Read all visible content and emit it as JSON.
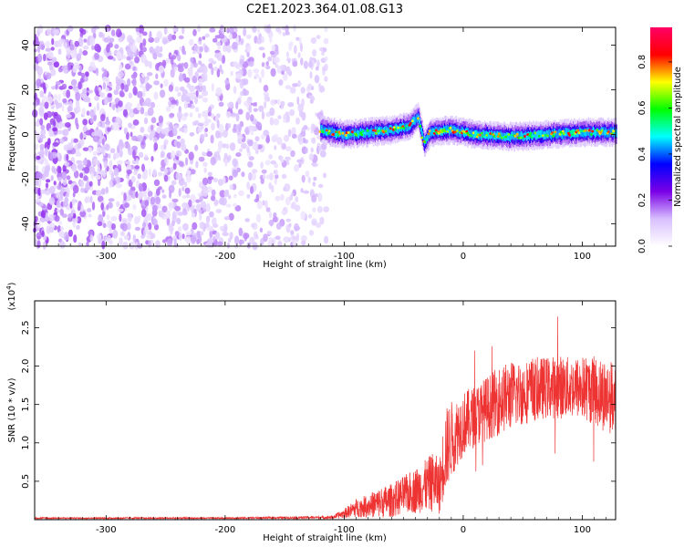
{
  "title": "C2E1.2023.364.01.08.G13",
  "chart_data": [
    {
      "type": "heatmap",
      "xlabel": "Height of straight line (km)",
      "ylabel": "Frequency (Hz)",
      "xlim": [
        -360,
        128
      ],
      "ylim": [
        -50,
        48
      ],
      "xticks": [
        -300,
        -200,
        -100,
        0,
        100
      ],
      "yticks": [
        -40,
        -20,
        0,
        20,
        40
      ],
      "colorbar": {
        "label": "Normalized spectral amplitude",
        "range": [
          0.0,
          0.95
        ],
        "ticks": [
          0.0,
          0.2,
          0.4,
          0.6,
          0.8
        ],
        "colormap": [
          "#ffffff",
          "#d8bfff",
          "#7a00e6",
          "#0000ff",
          "#00ffff",
          "#00ff00",
          "#ffff00",
          "#ff0000",
          "#ff0066"
        ]
      },
      "description_data": {
        "noise_region_x": [
          -360,
          -115
        ],
        "signal_region_x": [
          -120,
          128
        ],
        "signal_center_freq": [
          [
            -120,
            2
          ],
          [
            -100,
            0
          ],
          [
            -80,
            1
          ],
          [
            -60,
            2
          ],
          [
            -45,
            4
          ],
          [
            -38,
            8
          ],
          [
            -33,
            -4
          ],
          [
            -28,
            1
          ],
          [
            -10,
            2
          ],
          [
            10,
            0
          ],
          [
            40,
            -1
          ],
          [
            70,
            0
          ],
          [
            100,
            1
          ],
          [
            128,
            1
          ]
        ]
      }
    },
    {
      "type": "line",
      "xlabel": "Height of straight line (km)",
      "ylabel": "SNR (10 * v/v)",
      "y_exponent": "(x10",
      "y_exponent_power": "4",
      "y_exponent_close": ")",
      "xlim": [
        -360,
        128
      ],
      "ylim": [
        0,
        2.85
      ],
      "xticks": [
        -300,
        -200,
        -100,
        0,
        100
      ],
      "yticks": [
        0.5,
        1.0,
        1.5,
        2.0,
        2.5
      ],
      "series": [
        {
          "color": "#ee3333",
          "envelope": {
            "x": [
              -360,
              -300,
              -200,
              -110,
              -100,
              -90,
              -80,
              -70,
              -60,
              -50,
              -40,
              -30,
              -25,
              -20,
              -15,
              -10,
              -5,
              0,
              10,
              20,
              30,
              40,
              50,
              60,
              70,
              80,
              90,
              100,
              110,
              120,
              128
            ],
            "mean": [
              0.02,
              0.02,
              0.02,
              0.03,
              0.08,
              0.15,
              0.18,
              0.22,
              0.25,
              0.32,
              0.38,
              0.45,
              0.5,
              0.42,
              0.9,
              1.05,
              1.15,
              1.25,
              1.35,
              1.45,
              1.55,
              1.62,
              1.65,
              1.7,
              1.72,
              1.73,
              1.72,
              1.72,
              1.68,
              1.62,
              1.58
            ],
            "amp": [
              0.01,
              0.01,
              0.01,
              0.02,
              0.06,
              0.12,
              0.15,
              0.2,
              0.22,
              0.25,
              0.3,
              0.35,
              0.4,
              0.35,
              0.55,
              0.5,
              0.45,
              0.42,
              0.4,
              0.42,
              0.45,
              0.45,
              0.42,
              0.42,
              0.4,
              0.42,
              0.4,
              0.42,
              0.45,
              0.5,
              0.45
            ]
          }
        }
      ]
    }
  ]
}
